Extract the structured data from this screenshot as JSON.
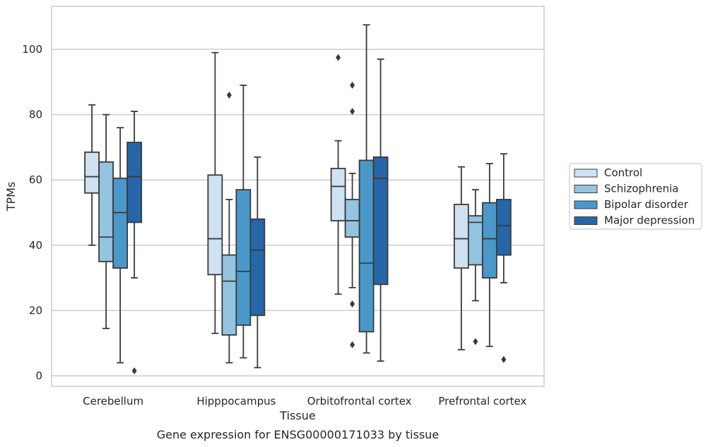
{
  "chart_data": {
    "type": "box",
    "title": "Gene expression for ENSG00000171033 by tissue",
    "xlabel": "Tissue",
    "ylabel": "TPMs",
    "ylim": [
      -3,
      113
    ],
    "yticks": [
      0,
      20,
      40,
      60,
      80,
      100
    ],
    "grid": "horizontal",
    "legend_position": "right",
    "categories": [
      "Cerebellum",
      "Hipppocampus",
      "Orbitofrontal cortex",
      "Prefrontal cortex"
    ],
    "series": [
      {
        "name": "Control",
        "color": "#d0e1f2",
        "boxes": [
          {
            "whislo": 40,
            "q1": 56,
            "med": 61,
            "q3": 68.5,
            "whishi": 83,
            "fliers": []
          },
          {
            "whislo": 13,
            "q1": 31,
            "med": 42,
            "q3": 61.5,
            "whishi": 99,
            "fliers": []
          },
          {
            "whislo": 25,
            "q1": 47.5,
            "med": 58,
            "q3": 63.5,
            "whishi": 72,
            "fliers": [
              97.5
            ]
          },
          {
            "whislo": 8,
            "q1": 33,
            "med": 42,
            "q3": 52.5,
            "whishi": 64,
            "fliers": []
          }
        ]
      },
      {
        "name": "Schizophrenia",
        "color": "#94c4df",
        "boxes": [
          {
            "whislo": 14.5,
            "q1": 35,
            "med": 42.5,
            "q3": 65.5,
            "whishi": 80,
            "fliers": []
          },
          {
            "whislo": 4,
            "q1": 12.5,
            "med": 29,
            "q3": 37,
            "whishi": 54,
            "fliers": [
              86
            ]
          },
          {
            "whislo": 27,
            "q1": 42.5,
            "med": 47.5,
            "q3": 54,
            "whishi": 62,
            "fliers": [
              89,
              81,
              22,
              9.5
            ]
          },
          {
            "whislo": 23,
            "q1": 34,
            "med": 47,
            "q3": 49,
            "whishi": 57,
            "fliers": [
              10.5
            ]
          }
        ]
      },
      {
        "name": "Bipolar disorder",
        "color": "#4a98c9",
        "boxes": [
          {
            "whislo": 4,
            "q1": 33,
            "med": 50,
            "q3": 60.5,
            "whishi": 76,
            "fliers": []
          },
          {
            "whislo": 5.5,
            "q1": 15.5,
            "med": 32,
            "q3": 57,
            "whishi": 89,
            "fliers": []
          },
          {
            "whislo": 7,
            "q1": 13.5,
            "med": 34.5,
            "q3": 66,
            "whishi": 107.5,
            "fliers": []
          },
          {
            "whislo": 9,
            "q1": 30,
            "med": 42,
            "q3": 53,
            "whishi": 65,
            "fliers": []
          }
        ]
      },
      {
        "name": "Major depression",
        "color": "#2666a8",
        "boxes": [
          {
            "whislo": 30,
            "q1": 47,
            "med": 61,
            "q3": 71.5,
            "whishi": 81,
            "fliers": [
              1.5
            ]
          },
          {
            "whislo": 2.5,
            "q1": 18.5,
            "med": 38.5,
            "q3": 48,
            "whishi": 67,
            "fliers": []
          },
          {
            "whislo": 4.5,
            "q1": 28,
            "med": 60.5,
            "q3": 67,
            "whishi": 97,
            "fliers": []
          },
          {
            "whislo": 28.5,
            "q1": 37,
            "med": 46,
            "q3": 54,
            "whishi": 68,
            "fliers": [
              5
            ]
          }
        ]
      }
    ]
  }
}
